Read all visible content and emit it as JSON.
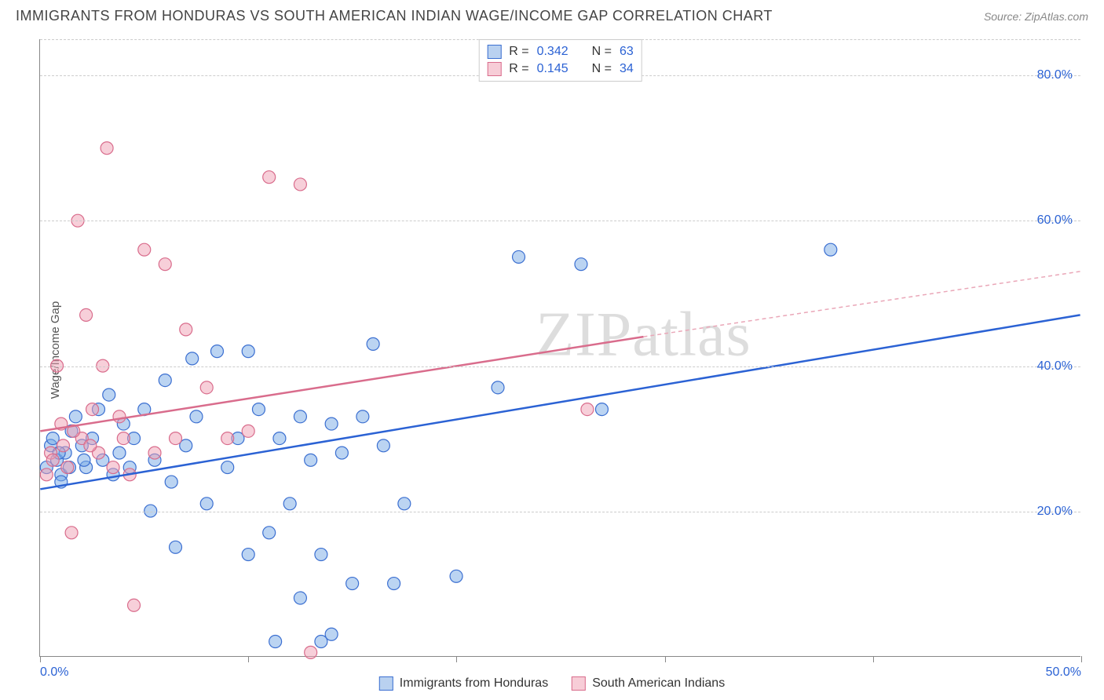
{
  "title": "IMMIGRANTS FROM HONDURAS VS SOUTH AMERICAN INDIAN WAGE/INCOME GAP CORRELATION CHART",
  "source": "Source: ZipAtlas.com",
  "ylabel": "Wage/Income Gap",
  "watermark": "ZIPatlas",
  "xlim": [
    0,
    50
  ],
  "ylim": [
    0,
    85
  ],
  "y_gridlines": [
    20,
    40,
    60,
    80
  ],
  "ytick_labels": [
    "20.0%",
    "40.0%",
    "60.0%",
    "80.0%"
  ],
  "xtick_positions": [
    0,
    10,
    20,
    30,
    40,
    50
  ],
  "xtick_labels": [
    "0.0%",
    "",
    "",
    "",
    "",
    "50.0%"
  ],
  "grid_color": "#cccccc",
  "axis_color": "#888888",
  "background_color": "#ffffff",
  "tick_label_color": "#2b62d4",
  "marker_radius": 8,
  "marker_stroke_width": 1.2,
  "legend_top": {
    "rows": [
      {
        "swatch_fill": "#b9d1f0",
        "swatch_stroke": "#3b6fd1",
        "r_label": "R = ",
        "r_value": "0.342",
        "n_label": "N = ",
        "n_value": "63"
      },
      {
        "swatch_fill": "#f7cdd7",
        "swatch_stroke": "#d96c8c",
        "r_label": "R = ",
        "r_value": "0.145",
        "n_label": "N = ",
        "n_value": "34"
      }
    ]
  },
  "legend_bottom": {
    "items": [
      {
        "swatch_fill": "#b9d1f0",
        "swatch_stroke": "#3b6fd1",
        "label": "Immigrants from Honduras"
      },
      {
        "swatch_fill": "#f7cdd7",
        "swatch_stroke": "#d96c8c",
        "label": "South American Indians"
      }
    ]
  },
  "series": [
    {
      "name": "Immigrants from Honduras",
      "color_fill": "rgba(120,170,230,0.5)",
      "color_stroke": "#3b6fd1",
      "points": [
        [
          0.3,
          26
        ],
        [
          0.5,
          29
        ],
        [
          0.6,
          30
        ],
        [
          0.8,
          27
        ],
        [
          1.0,
          25
        ],
        [
          1.2,
          28
        ],
        [
          1.5,
          31
        ],
        [
          1.7,
          33
        ],
        [
          2.0,
          29
        ],
        [
          2.2,
          26
        ],
        [
          2.5,
          30
        ],
        [
          2.8,
          34
        ],
        [
          3.0,
          27
        ],
        [
          3.3,
          36
        ],
        [
          3.5,
          25
        ],
        [
          3.8,
          28
        ],
        [
          4.0,
          32
        ],
        [
          4.3,
          26
        ],
        [
          4.5,
          30
        ],
        [
          5.0,
          34
        ],
        [
          5.3,
          20
        ],
        [
          5.5,
          27
        ],
        [
          6.0,
          38
        ],
        [
          6.3,
          24
        ],
        [
          6.5,
          15
        ],
        [
          7.0,
          29
        ],
        [
          7.3,
          41
        ],
        [
          7.5,
          33
        ],
        [
          8.0,
          21
        ],
        [
          8.5,
          42
        ],
        [
          9.0,
          26
        ],
        [
          9.5,
          30
        ],
        [
          10.0,
          14
        ],
        [
          10.0,
          42
        ],
        [
          10.5,
          34
        ],
        [
          11.0,
          17
        ],
        [
          11.3,
          2
        ],
        [
          11.5,
          30
        ],
        [
          12.0,
          21
        ],
        [
          12.5,
          8
        ],
        [
          12.5,
          33
        ],
        [
          13.0,
          27
        ],
        [
          13.5,
          14
        ],
        [
          13.5,
          2
        ],
        [
          14.0,
          32
        ],
        [
          14.0,
          3
        ],
        [
          14.5,
          28
        ],
        [
          15.0,
          10
        ],
        [
          15.5,
          33
        ],
        [
          16.0,
          43
        ],
        [
          16.5,
          29
        ],
        [
          17.0,
          10
        ],
        [
          17.5,
          21
        ],
        [
          20.0,
          11
        ],
        [
          22.0,
          37
        ],
        [
          23.0,
          55
        ],
        [
          26.0,
          54
        ],
        [
          27.0,
          34
        ],
        [
          38.0,
          56
        ],
        [
          1.0,
          24
        ],
        [
          1.4,
          26
        ],
        [
          2.1,
          27
        ],
        [
          0.9,
          28
        ]
      ],
      "trend": {
        "x1": 0,
        "y1": 23,
        "x2": 50,
        "y2": 47,
        "color": "#2b62d4",
        "width": 2.5,
        "dash": ""
      }
    },
    {
      "name": "South American Indians",
      "color_fill": "rgba(240,160,180,0.5)",
      "color_stroke": "#d96c8c",
      "points": [
        [
          0.3,
          25
        ],
        [
          0.5,
          28
        ],
        [
          0.8,
          40
        ],
        [
          1.0,
          32
        ],
        [
          1.3,
          26
        ],
        [
          1.5,
          17
        ],
        [
          1.8,
          60
        ],
        [
          2.0,
          30
        ],
        [
          2.2,
          47
        ],
        [
          2.5,
          34
        ],
        [
          2.8,
          28
        ],
        [
          3.0,
          40
        ],
        [
          3.2,
          70
        ],
        [
          3.5,
          26
        ],
        [
          3.8,
          33
        ],
        [
          4.0,
          30
        ],
        [
          4.3,
          25
        ],
        [
          5.0,
          56
        ],
        [
          5.5,
          28
        ],
        [
          6.0,
          54
        ],
        [
          6.5,
          30
        ],
        [
          7.0,
          45
        ],
        [
          8.0,
          37
        ],
        [
          9.0,
          30
        ],
        [
          10.0,
          31
        ],
        [
          11.0,
          66
        ],
        [
          12.5,
          65
        ],
        [
          4.5,
          7
        ],
        [
          13.0,
          0.5
        ],
        [
          26.3,
          34
        ],
        [
          0.6,
          27
        ],
        [
          1.1,
          29
        ],
        [
          1.6,
          31
        ],
        [
          2.4,
          29
        ]
      ],
      "trend_solid": {
        "x1": 0,
        "y1": 31,
        "x2": 29,
        "y2": 44,
        "color": "#d96c8c",
        "width": 2.5
      },
      "trend_dashed": {
        "x1": 29,
        "y1": 44,
        "x2": 50,
        "y2": 53,
        "color": "#eaa7b8",
        "width": 1.5,
        "dash": "5,4"
      }
    }
  ]
}
